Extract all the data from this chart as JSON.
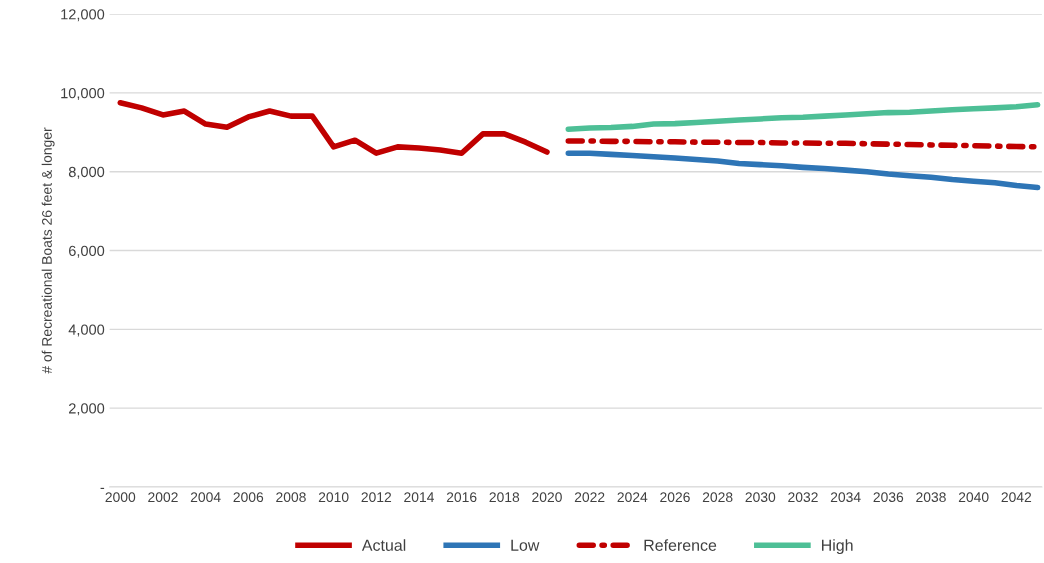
{
  "chart_data": {
    "type": "line",
    "ylabel": "# of Recreational Boats 26 feet & longer",
    "categories": [
      "2000",
      null,
      "2002",
      null,
      "2004",
      null,
      "2006",
      null,
      "2008",
      null,
      "2010",
      null,
      "2012",
      null,
      "2014",
      null,
      "2016",
      null,
      "2018",
      null,
      "2020",
      null,
      "2022",
      null,
      "2024",
      null,
      "2026",
      null,
      "2028",
      null,
      "2030",
      null,
      "2032",
      null,
      "2034",
      null,
      "2036",
      null,
      "2038",
      null,
      "2040",
      null,
      "2042",
      null
    ],
    "ylim": [
      0,
      12000
    ],
    "yticks": [
      {
        "value": 0,
        "label": "-"
      },
      {
        "value": 2000,
        "label": "2,000"
      },
      {
        "value": 4000,
        "label": "4,000"
      },
      {
        "value": 6000,
        "label": "6,000"
      },
      {
        "value": 8000,
        "label": "8,000"
      },
      {
        "value": 10000,
        "label": "10,000"
      },
      {
        "value": 12000,
        "label": "12,000"
      }
    ],
    "grid": "y",
    "legend": "bottom",
    "series": [
      {
        "name": "Actual",
        "color": "#c00000",
        "line_style": "solid",
        "values": [
          9750,
          9620,
          9440,
          9540,
          9210,
          9130,
          9390,
          9540,
          9410,
          9410,
          8630,
          8800,
          8470,
          8630,
          8600,
          8550,
          8470,
          8960,
          8960,
          8750,
          8500,
          null,
          null,
          null,
          null,
          null,
          null,
          null,
          null,
          null,
          null,
          null,
          null,
          null,
          null,
          null,
          null,
          null,
          null,
          null,
          null,
          null,
          null,
          null
        ]
      },
      {
        "name": "Low",
        "color": "#2e75b6",
        "line_style": "solid",
        "values": [
          null,
          null,
          null,
          null,
          null,
          null,
          null,
          null,
          null,
          null,
          null,
          null,
          null,
          null,
          null,
          null,
          null,
          null,
          null,
          null,
          null,
          8470,
          8470,
          8440,
          8410,
          8380,
          8350,
          8310,
          8270,
          8210,
          8180,
          8150,
          8110,
          8080,
          8040,
          8000,
          7940,
          7900,
          7860,
          7800,
          7760,
          7720,
          7650,
          7600
        ]
      },
      {
        "name": "Reference",
        "color": "#c00000",
        "line_style": "dashdot",
        "values": [
          null,
          null,
          null,
          null,
          null,
          null,
          null,
          null,
          null,
          null,
          null,
          null,
          null,
          null,
          null,
          null,
          null,
          null,
          null,
          null,
          null,
          8780,
          8780,
          8770,
          8770,
          8760,
          8760,
          8750,
          8750,
          8740,
          8740,
          8730,
          8730,
          8720,
          8720,
          8710,
          8700,
          8690,
          8680,
          8670,
          8660,
          8650,
          8640,
          8630
        ]
      },
      {
        "name": "High",
        "color": "#4dbf96",
        "line_style": "solid",
        "values": [
          null,
          null,
          null,
          null,
          null,
          null,
          null,
          null,
          null,
          null,
          null,
          null,
          null,
          null,
          null,
          null,
          null,
          null,
          null,
          null,
          null,
          9080,
          9110,
          9120,
          9150,
          9210,
          9220,
          9250,
          9280,
          9310,
          9340,
          9370,
          9380,
          9410,
          9440,
          9470,
          9500,
          9510,
          9540,
          9570,
          9600,
          9620,
          9650,
          9700
        ]
      }
    ]
  }
}
